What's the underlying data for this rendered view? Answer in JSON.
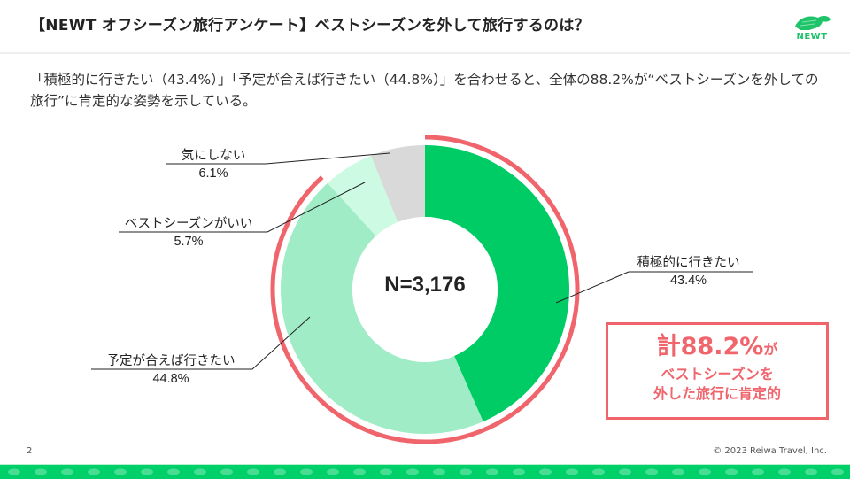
{
  "header": {
    "title": "【NEWT オフシーズン旅行アンケート】ベストシーズンを外して旅行するのは？",
    "logo_text": "NEWT",
    "logo_icon": "turtle-icon",
    "brand_color": "#1fc46a"
  },
  "lead_text": "「積極的に行きたい（43.4%）」「予定が合えば行きたい（44.8%）」を合わせると、全体の88.2%が“ベストシーズンを外しての旅行”に肯定的な姿勢を示している。",
  "chart_data": {
    "type": "pie",
    "variant": "donut",
    "title": "",
    "center_label": "N=3,176",
    "sample_size": 3176,
    "start_angle_deg": 0,
    "direction": "clockwise",
    "categories": [
      "積極的に行きたい",
      "予定が合えば行きたい",
      "ベストシーズンがいい",
      "気にしない"
    ],
    "values": [
      43.4,
      44.8,
      5.7,
      6.1
    ],
    "unit": "%",
    "colors": [
      "#00cc66",
      "#a0ecc7",
      "#cdfae3",
      "#d9d9d9"
    ],
    "labels": [
      {
        "name": "積極的に行きたい",
        "value": "43.4%"
      },
      {
        "name": "予定が合えば行きたい",
        "value": "44.8%"
      },
      {
        "name": "ベストシーズンがいい",
        "value": "5.7%"
      },
      {
        "name": "気にしない",
        "value": "6.1%"
      }
    ],
    "highlight": {
      "covers": [
        "積極的に行きたい",
        "予定が合えば行きたい"
      ],
      "total": 88.2,
      "color": "#f0646c"
    }
  },
  "callout": {
    "prefix": "計",
    "value": "88.2%",
    "suffix": "が",
    "line2": "ベストシーズンを",
    "line3": "外した旅行に肯定的",
    "color": "#f0646c"
  },
  "footer": {
    "page_number": "2",
    "copyright": "© 2023 Reiwa Travel, Inc.",
    "band_color": "#00d06a"
  }
}
